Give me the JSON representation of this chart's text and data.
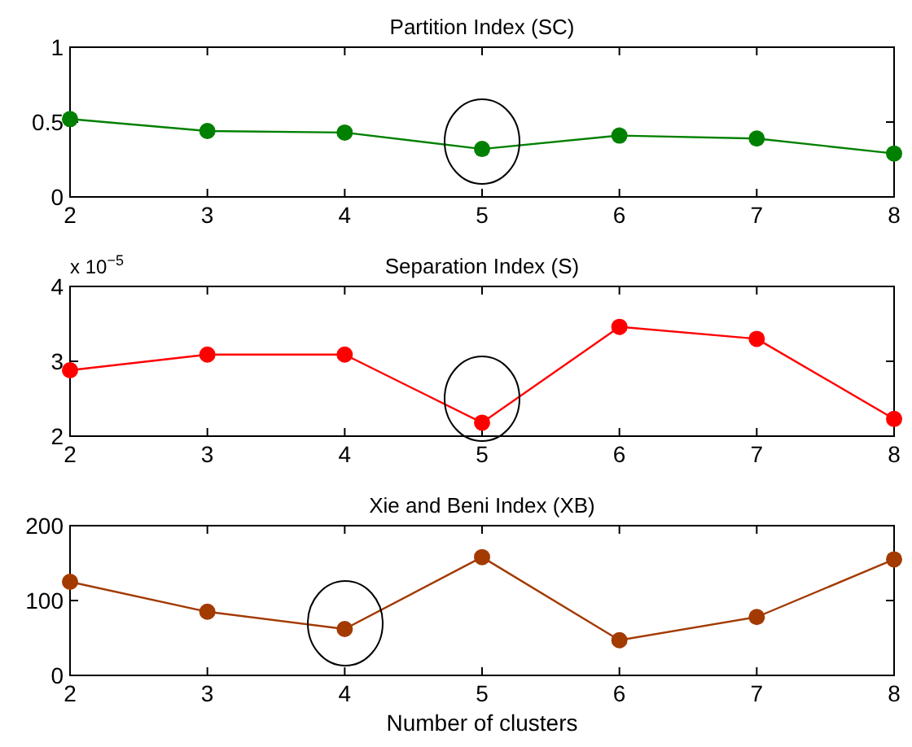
{
  "chart_data": [
    {
      "type": "line",
      "title": "Partition Index (SC)",
      "x": [
        2,
        3,
        4,
        5,
        6,
        7,
        8
      ],
      "series": [
        {
          "color": "#008000",
          "values": [
            0.52,
            0.44,
            0.43,
            0.32,
            0.41,
            0.39,
            0.29
          ]
        }
      ],
      "xlim": [
        2,
        8
      ],
      "xticks": [
        2,
        3,
        4,
        5,
        6,
        7,
        8
      ],
      "ylim": [
        0,
        1
      ],
      "yticks": [
        0,
        0.5,
        1
      ],
      "marker": "circle",
      "grid": false
    },
    {
      "type": "line",
      "title": "Separation Index (S)",
      "x": [
        2,
        3,
        4,
        5,
        6,
        7,
        8
      ],
      "series": [
        {
          "color": "#ff0000",
          "values": [
            2.88,
            3.09,
            3.09,
            2.18,
            3.46,
            3.3,
            2.23
          ]
        }
      ],
      "xlim": [
        2,
        8
      ],
      "xticks": [
        2,
        3,
        4,
        5,
        6,
        7,
        8
      ],
      "ylim": [
        2,
        4
      ],
      "yticks": [
        2,
        3,
        4
      ],
      "marker": "circle",
      "grid": false,
      "annotations": [
        "x 10$^{−5}$"
      ]
    },
    {
      "type": "line",
      "title": "Xie and Beni Index (XB)",
      "xlabel": "Number of clusters",
      "x": [
        2,
        3,
        4,
        5,
        6,
        7,
        8
      ],
      "series": [
        {
          "color": "#a33a00",
          "values": [
            125,
            85,
            62,
            158,
            47,
            78,
            155
          ]
        }
      ],
      "xlim": [
        2,
        8
      ],
      "xticks": [
        2,
        3,
        4,
        5,
        6,
        7,
        8
      ],
      "ylim": [
        0,
        200
      ],
      "yticks": [
        0,
        100,
        200
      ],
      "marker": "circle",
      "grid": false
    }
  ]
}
